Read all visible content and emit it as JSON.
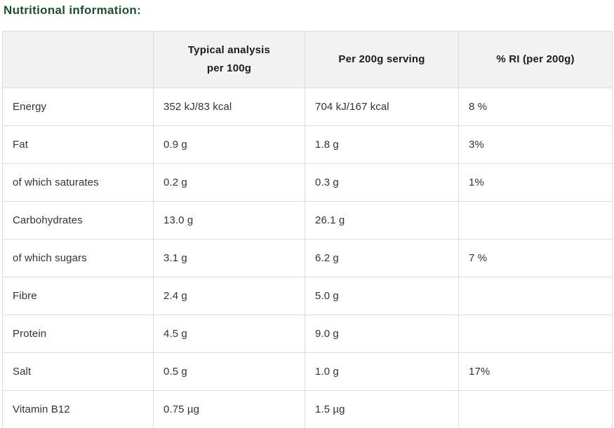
{
  "page": {
    "title": "Nutritional information:"
  },
  "colors": {
    "title-green": "#1b5030",
    "header-bg": "#f2f2f2",
    "header-text": "#1c1c1c",
    "body-text": "#333333",
    "border": "#dcdcdc"
  },
  "table": {
    "headers": {
      "nutrient": "",
      "per100g": "Typical analysis\nper 100g",
      "per200g": "Per 200g serving",
      "ri": "% RI (per 200g)"
    },
    "rows": [
      {
        "label": "Energy",
        "per100g": "352 kJ/83 kcal",
        "per200g": "704 kJ/167 kcal",
        "ri": "8 %"
      },
      {
        "label": "Fat",
        "per100g": "0.9 g",
        "per200g": "1.8 g",
        "ri": "3%"
      },
      {
        "label": "of which saturates",
        "per100g": "0.2 g",
        "per200g": "0.3 g",
        "ri": "1%"
      },
      {
        "label": "Carbohydrates",
        "per100g": "13.0 g",
        "per200g": "26.1 g",
        "ri": ""
      },
      {
        "label": "of which sugars",
        "per100g": "3.1 g",
        "per200g": "6.2 g",
        "ri": "7 %"
      },
      {
        "label": "Fibre",
        "per100g": "2.4 g",
        "per200g": "5.0 g",
        "ri": ""
      },
      {
        "label": "Protein",
        "per100g": "4.5 g",
        "per200g": "9.0 g",
        "ri": ""
      },
      {
        "label": "Salt",
        "per100g": "0.5 g",
        "per200g": "1.0 g",
        "ri": "17%"
      },
      {
        "label": "Vitamin B12",
        "per100g": "0.75 µg",
        "per200g": "1.5 µg",
        "ri": ""
      }
    ]
  }
}
